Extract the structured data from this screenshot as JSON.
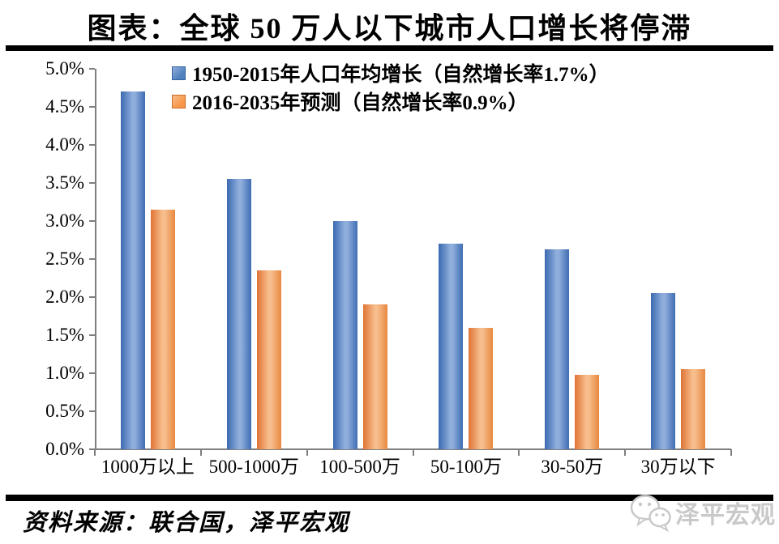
{
  "header": {
    "title": "图表：全球 50 万人以下城市人口增长将停滞"
  },
  "chart_data": {
    "type": "bar",
    "title": "图表：全球 50 万人以下城市人口增长将停滞",
    "categories": [
      "1000万以上",
      "500-1000万",
      "100-500万",
      "50-100万",
      "30-50万",
      "30万以下"
    ],
    "series": [
      {
        "name": "1950-2015年人口年均增长（自然增长率1.7%）",
        "values": [
          4.7,
          3.55,
          3.0,
          2.7,
          2.63,
          2.05
        ],
        "color": "#4F81BD",
        "gradient": [
          "#3B69B1",
          "#8FAEDC",
          "#3F6DB3"
        ],
        "edge": "#35619F"
      },
      {
        "name": "2016-2035年预测（自然增长率0.9%）",
        "values": [
          3.15,
          2.35,
          1.9,
          1.6,
          0.98,
          1.05
        ],
        "color": "#F79646",
        "gradient": [
          "#DF7434",
          "#F7BE8D",
          "#E8883F"
        ],
        "edge": "#D06A28"
      }
    ],
    "xlabel": "",
    "ylabel": "",
    "ylim": [
      0,
      5
    ],
    "ytick_step": 0.5,
    "ytick_labels": [
      "0.0%",
      "0.5%",
      "1.0%",
      "1.5%",
      "2.0%",
      "2.5%",
      "3.0%",
      "3.5%",
      "4.0%",
      "4.5%",
      "5.0%"
    ],
    "grid": false,
    "legend_position": "top-left-inside"
  },
  "footer": {
    "source": "资料来源：联合国，泽平宏观",
    "watermark": "泽平宏观"
  },
  "colors": {
    "axis": "#7f7f7f",
    "divider": "#000000",
    "watermark_gray": "#c9c9c9"
  }
}
